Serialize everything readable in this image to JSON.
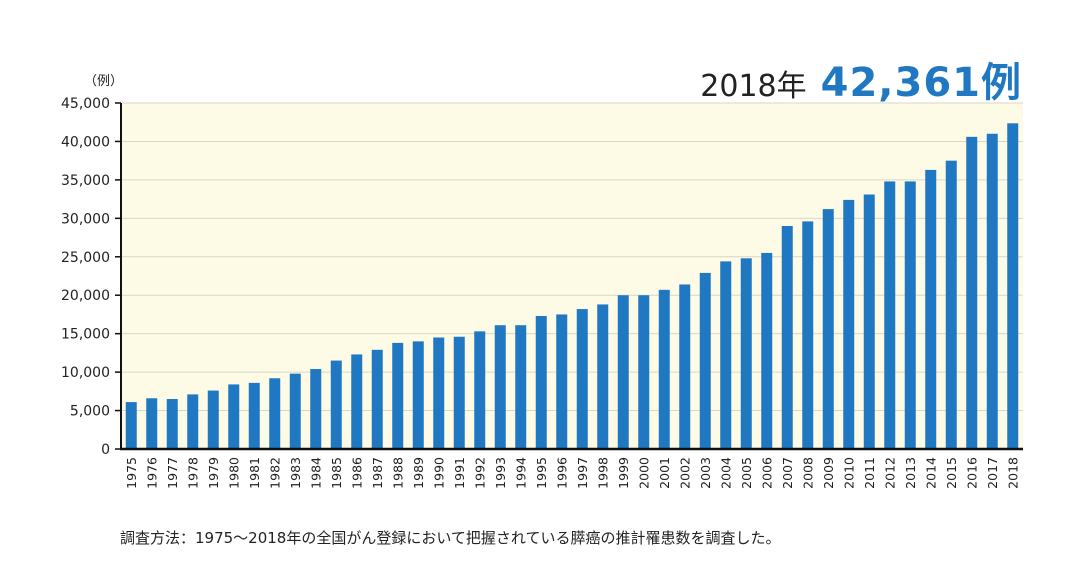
{
  "headline": {
    "year_label": "2018年",
    "value_label": "42,361例"
  },
  "note": "調査方法：1975〜2018年の全国がん登録において把握されている膵癌の推計罹患数を調査した。",
  "colors": {
    "bar": "#1f78c1",
    "plot_background": "#fdfbe6",
    "grid": "#d9d6c8",
    "headline_value": "#1f78c1"
  },
  "chart_data": {
    "type": "bar",
    "ylabel": "（例）",
    "ylim": [
      0,
      45000
    ],
    "yticks": [
      0,
      5000,
      10000,
      15000,
      20000,
      25000,
      30000,
      35000,
      40000,
      45000
    ],
    "ytick_labels": [
      "0",
      "5,000",
      "10,000",
      "15,000",
      "20,000",
      "25,000",
      "30,000",
      "35,000",
      "40,000",
      "45,000"
    ],
    "grid": true,
    "categories": [
      "1975",
      "1976",
      "1977",
      "1978",
      "1979",
      "1980",
      "1981",
      "1982",
      "1983",
      "1984",
      "1985",
      "1986",
      "1987",
      "1988",
      "1989",
      "1990",
      "1991",
      "1992",
      "1993",
      "1994",
      "1995",
      "1996",
      "1997",
      "1998",
      "1999",
      "2000",
      "2001",
      "2002",
      "2003",
      "2004",
      "2005",
      "2006",
      "2007",
      "2008",
      "2009",
      "2010",
      "2011",
      "2012",
      "2013",
      "2014",
      "2015",
      "2016",
      "2017",
      "2018"
    ],
    "values": [
      6100,
      6600,
      6500,
      7100,
      7600,
      8400,
      8600,
      9200,
      9800,
      10400,
      11500,
      12300,
      12900,
      13800,
      14000,
      14500,
      14600,
      15300,
      16100,
      16100,
      17300,
      17500,
      18200,
      18800,
      20000,
      20000,
      20700,
      21400,
      22900,
      24400,
      24800,
      25500,
      29000,
      29600,
      31200,
      32400,
      33100,
      34800,
      34800,
      36300,
      37500,
      40600,
      41000,
      42361
    ]
  }
}
